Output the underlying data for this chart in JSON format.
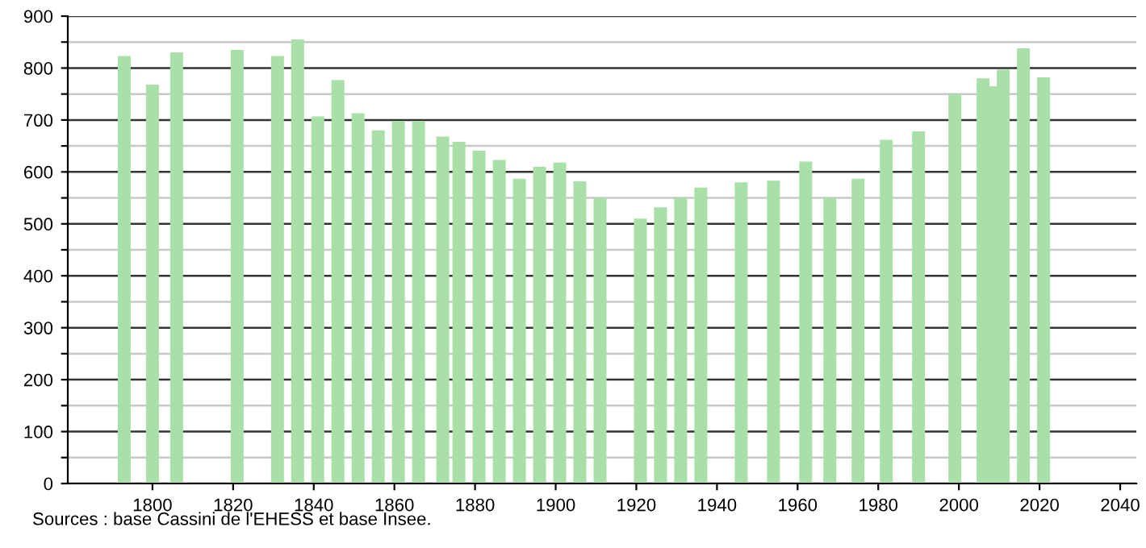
{
  "chart_data": {
    "type": "bar",
    "x": [
      1793,
      1800,
      1806,
      1821,
      1831,
      1836,
      1841,
      1846,
      1851,
      1856,
      1861,
      1866,
      1872,
      1876,
      1881,
      1886,
      1891,
      1896,
      1901,
      1906,
      1911,
      1921,
      1926,
      1931,
      1936,
      1946,
      1954,
      1962,
      1968,
      1975,
      1982,
      1990,
      1999,
      2006,
      2008,
      2011,
      2016,
      2021
    ],
    "values": [
      823,
      768,
      830,
      835,
      823,
      855,
      707,
      777,
      713,
      680,
      698,
      698,
      668,
      658,
      641,
      623,
      587,
      610,
      618,
      582,
      550,
      510,
      532,
      550,
      570,
      580,
      583,
      620,
      550,
      587,
      662,
      678,
      750,
      780,
      765,
      797,
      838,
      782
    ],
    "color": "#a8e0a8",
    "xlim": [
      1779,
      2044
    ],
    "xticks": [
      1800,
      1820,
      1840,
      1860,
      1880,
      1900,
      1920,
      1940,
      1960,
      1980,
      2000,
      2020,
      2040
    ],
    "ylim": [
      0,
      900
    ],
    "yticks": [
      0,
      {
        "value": 50,
        "label": null
      },
      100,
      {
        "value": 150,
        "label": null
      },
      200,
      {
        "value": 250,
        "label": null
      },
      300,
      {
        "value": 350,
        "label": null
      },
      400,
      {
        "value": 450,
        "label": null
      },
      500,
      {
        "value": 550,
        "label": null
      },
      600,
      {
        "value": 650,
        "label": null
      },
      700,
      {
        "value": 750,
        "label": null
      },
      800,
      {
        "value": 850,
        "label": null
      },
      900
    ],
    "grid": "y",
    "annotations": [
      "Sources : base Cassini de l'EHESS et base Insee."
    ]
  }
}
